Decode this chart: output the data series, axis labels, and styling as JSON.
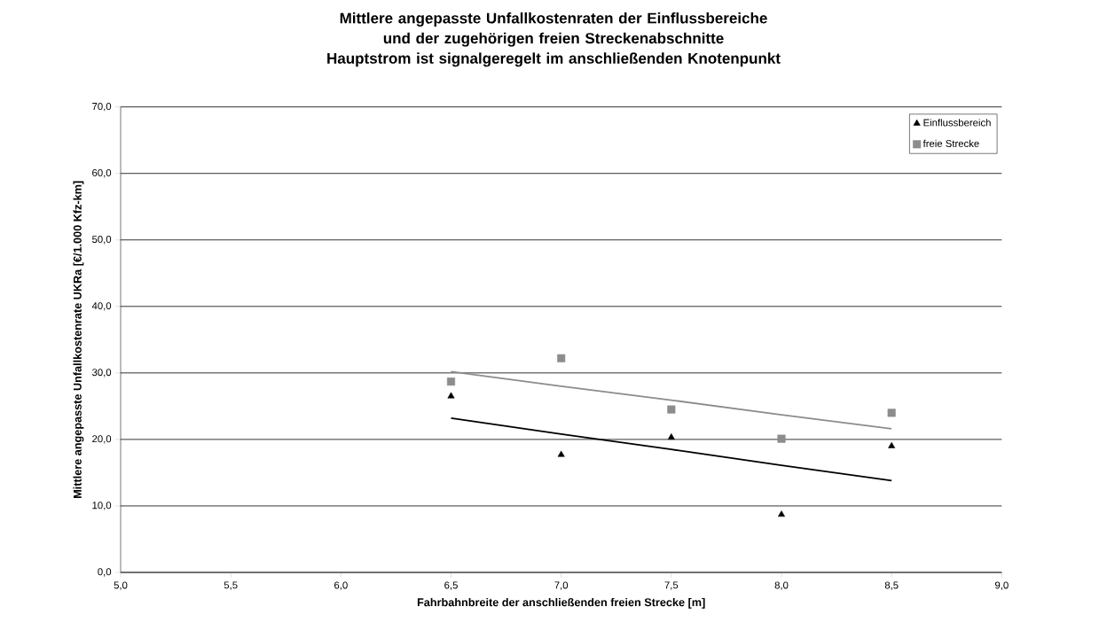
{
  "chart_data": {
    "type": "scatter",
    "title": "Mittlere angepasste Unfallkostenraten der Einflussbereiche und der zugehörigen freien Streckenabschnitte",
    "subtitle": "Hauptstrom ist signalgeregelt im anschließenden Knotenpunkt",
    "xlabel": "Fahrbahnbreite der anschließenden freien Strecke [m]",
    "ylabel": "Mittlere angepasste Unfallkostenrate UKRa [€/1.000 Kfz-km]",
    "x": [
      6.5,
      7.0,
      7.5,
      8.0,
      8.5
    ],
    "series": [
      {
        "name": "Einflussbereich",
        "color": "#000000",
        "marker": "triangle",
        "values": [
          26.5,
          17.7,
          20.3,
          8.7,
          19.0
        ]
      },
      {
        "name": "freie Strecke",
        "color": "#8c8c8c",
        "marker": "square",
        "values": [
          28.7,
          32.2,
          24.5,
          20.1,
          24.0
        ]
      },
      {
        "type": "line",
        "color": "#000000",
        "marker": "none",
        "line_style": "solid",
        "values": [
          23.2,
          20.8,
          18.5,
          16.1,
          13.8
        ]
      },
      {
        "type": "line",
        "color": "#8c8c8c",
        "marker": "none",
        "line_style": "solid",
        "values": [
          30.2,
          28.0,
          25.9,
          23.7,
          21.6
        ]
      }
    ],
    "xlim": [
      5.0,
      9.0
    ],
    "ylim": [
      0,
      70
    ],
    "xticks": [
      {
        "value": 5.0,
        "label": "5,0"
      },
      {
        "value": 5.5,
        "label": "5,5"
      },
      {
        "value": 6.0,
        "label": "6,0"
      },
      {
        "value": 6.5,
        "label": "6,5"
      },
      {
        "value": 7.0,
        "label": "7,0"
      },
      {
        "value": 7.5,
        "label": "7,5"
      },
      {
        "value": 8.0,
        "label": "8,0"
      },
      {
        "value": 8.5,
        "label": "8,5"
      },
      {
        "value": 9.0,
        "label": "9,0"
      }
    ],
    "yticks": [
      {
        "value": 0,
        "label": "0,0"
      },
      {
        "value": 10,
        "label": "10,0"
      },
      {
        "value": 20,
        "label": "20,0"
      },
      {
        "value": 30,
        "label": "30,0"
      },
      {
        "value": 40,
        "label": "40,0"
      },
      {
        "value": 50,
        "label": "50,0"
      },
      {
        "value": 60,
        "label": "60,0"
      },
      {
        "value": 70,
        "label": "70,0"
      }
    ],
    "grid": "y",
    "legend": "top right"
  }
}
